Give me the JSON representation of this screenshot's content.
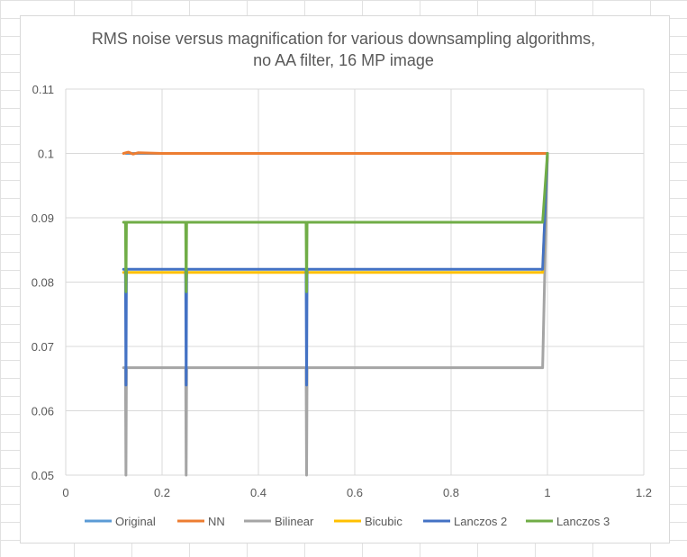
{
  "chart_data": {
    "type": "line",
    "title_lines": [
      "RMS noise versus magnification for various downsampling algorithms,",
      "no AA filter, 16 MP image"
    ],
    "xlabel": "",
    "ylabel": "",
    "xlim": [
      0,
      1.2
    ],
    "ylim": [
      0.05,
      0.11
    ],
    "x_ticks": [
      "0",
      "0.2",
      "0.4",
      "0.6",
      "0.8",
      "1",
      "1.2"
    ],
    "y_ticks": [
      "0.05",
      "0.06",
      "0.07",
      "0.08",
      "0.09",
      "0.1",
      "0.11"
    ],
    "grid": true,
    "legend_position": "bottom",
    "series": [
      {
        "name": "Original",
        "color": "#5b9bd5",
        "points": [
          [
            0.125,
            0.1
          ],
          [
            1.0,
            0.1
          ]
        ]
      },
      {
        "name": "NN",
        "color": "#ed7d31",
        "points": [
          [
            0.12,
            0.1
          ],
          [
            0.13,
            0.1002
          ],
          [
            0.14,
            0.0999
          ],
          [
            0.15,
            0.1001
          ],
          [
            0.2,
            0.1
          ],
          [
            0.3,
            0.1
          ],
          [
            0.5,
            0.1
          ],
          [
            0.8,
            0.1
          ],
          [
            1.0,
            0.1
          ]
        ]
      },
      {
        "name": "Bilinear",
        "color": "#a5a5a5",
        "points": [
          [
            0.12,
            0.0667
          ],
          [
            0.124,
            0.0667
          ],
          [
            0.125,
            0.05
          ],
          [
            0.126,
            0.0667
          ],
          [
            0.249,
            0.0667
          ],
          [
            0.25,
            0.05
          ],
          [
            0.251,
            0.0667
          ],
          [
            0.499,
            0.0667
          ],
          [
            0.5,
            0.05
          ],
          [
            0.501,
            0.0667
          ],
          [
            0.99,
            0.0667
          ],
          [
            1.0,
            0.1
          ]
        ]
      },
      {
        "name": "Bicubic",
        "color": "#ffc000",
        "points": [
          [
            0.12,
            0.0815
          ],
          [
            0.124,
            0.0815
          ],
          [
            0.125,
            0.0785
          ],
          [
            0.126,
            0.0815
          ],
          [
            0.249,
            0.0815
          ],
          [
            0.25,
            0.0785
          ],
          [
            0.251,
            0.0815
          ],
          [
            0.499,
            0.0815
          ],
          [
            0.5,
            0.0785
          ],
          [
            0.501,
            0.0815
          ],
          [
            0.99,
            0.0815
          ],
          [
            1.0,
            0.1
          ]
        ]
      },
      {
        "name": "Lanczos 2",
        "color": "#4472c4",
        "points": [
          [
            0.12,
            0.082
          ],
          [
            0.124,
            0.082
          ],
          [
            0.125,
            0.064
          ],
          [
            0.126,
            0.082
          ],
          [
            0.249,
            0.082
          ],
          [
            0.25,
            0.064
          ],
          [
            0.251,
            0.082
          ],
          [
            0.499,
            0.082
          ],
          [
            0.5,
            0.064
          ],
          [
            0.501,
            0.082
          ],
          [
            0.99,
            0.082
          ],
          [
            1.0,
            0.1
          ]
        ]
      },
      {
        "name": "Lanczos 3",
        "color": "#70ad47",
        "points": [
          [
            0.12,
            0.0893
          ],
          [
            0.124,
            0.0893
          ],
          [
            0.125,
            0.0785
          ],
          [
            0.126,
            0.0893
          ],
          [
            0.249,
            0.0893
          ],
          [
            0.25,
            0.0785
          ],
          [
            0.251,
            0.0893
          ],
          [
            0.499,
            0.0893
          ],
          [
            0.5,
            0.0785
          ],
          [
            0.501,
            0.0893
          ],
          [
            0.99,
            0.0893
          ],
          [
            1.0,
            0.1
          ]
        ]
      }
    ]
  }
}
